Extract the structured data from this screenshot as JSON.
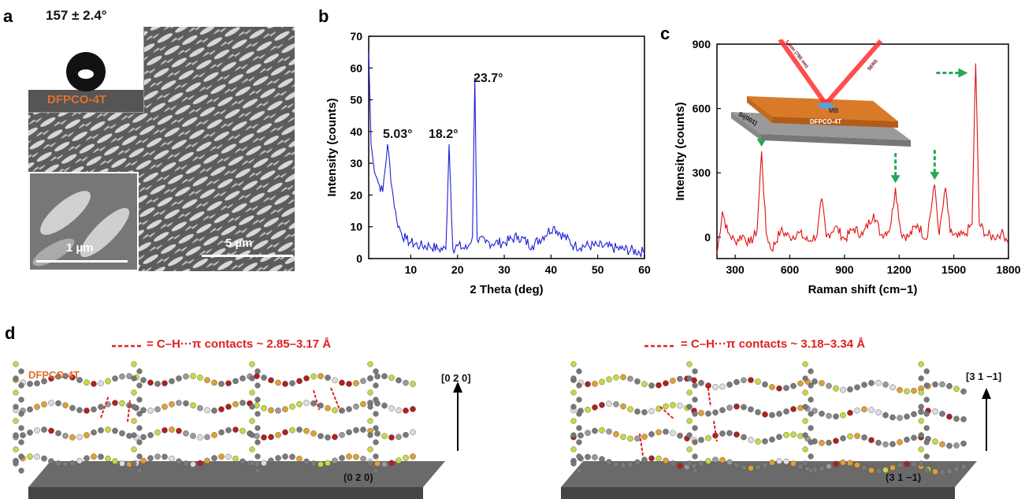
{
  "panels": {
    "a": {
      "letter": "a",
      "contact_angle": "157 ± 2.4°",
      "material": "DFPCO-4T",
      "inset_scale": "1 µm",
      "main_scale": "5 µm"
    },
    "b": {
      "letter": "b",
      "peak_labels": [
        "5.03°",
        "18.2°",
        "23.7°"
      ]
    },
    "c": {
      "letter": "c",
      "inset_labels": {
        "laser": "Laser (785 nm)",
        "mb": "MB",
        "film": "DFPCO-4T",
        "substrate": "Si(001)",
        "scatter": "SERS"
      }
    },
    "d": {
      "letter": "d",
      "left": {
        "legend": "= C–H···π contacts ~ 2.85–3.17 Å",
        "material": "DFPCO-4T",
        "direction": "[0 2 0]",
        "plane": "(0 2 0)"
      },
      "right": {
        "legend": "= C–H···π contacts ~ 3.18–3.34 Å",
        "direction": "[3 1 −1]",
        "plane": "(3 1 −1)"
      }
    }
  },
  "colors": {
    "xrd": "#1f1fd6",
    "raman": "#e01010",
    "arrow": "#22aa55",
    "orange": "#e07030",
    "contact": "#e02020"
  },
  "chart_data": [
    {
      "type": "line",
      "id": "xrd",
      "xlabel": "2 Theta (deg)",
      "ylabel": "Intensity (counts)",
      "xlim": [
        1,
        60
      ],
      "ylim": [
        0,
        70
      ],
      "xticks": [
        10,
        20,
        30,
        40,
        50,
        60
      ],
      "yticks": [
        0,
        10,
        20,
        30,
        40,
        50,
        60,
        70
      ],
      "grid": false,
      "x": [
        1,
        1.5,
        2,
        3,
        4,
        5.03,
        6,
        7,
        8,
        9,
        10,
        12,
        14,
        16,
        17.5,
        18.2,
        19,
        20,
        22,
        23.2,
        23.7,
        24.2,
        26,
        30,
        33,
        36,
        40.5,
        45,
        50,
        55,
        60
      ],
      "y": [
        65,
        36,
        30,
        24,
        21,
        36,
        22,
        12,
        8,
        6,
        5,
        4,
        4,
        3,
        3,
        36,
        3,
        4,
        3,
        7,
        57,
        6,
        5,
        5,
        7,
        4,
        10,
        4,
        4,
        3,
        2
      ]
    },
    {
      "type": "line",
      "id": "raman",
      "xlabel": "Raman shift (cm−1)",
      "ylabel": "Intensity (counts)",
      "xlim": [
        200,
        1800
      ],
      "ylim": [
        -100,
        900
      ],
      "xticks": [
        300,
        600,
        900,
        1200,
        1500,
        1800
      ],
      "yticks": [
        0,
        300,
        600,
        900
      ],
      "grid": false,
      "x": [
        200,
        230,
        260,
        300,
        340,
        380,
        420,
        445,
        470,
        500,
        550,
        600,
        650,
        700,
        750,
        775,
        800,
        850,
        900,
        950,
        1000,
        1060,
        1100,
        1150,
        1180,
        1210,
        1250,
        1300,
        1350,
        1395,
        1420,
        1455,
        1480,
        1520,
        1560,
        1600,
        1620,
        1640,
        1680,
        1720,
        1760,
        1800
      ],
      "y": [
        -80,
        120,
        20,
        -20,
        10,
        -30,
        30,
        400,
        20,
        -60,
        30,
        0,
        20,
        -20,
        10,
        180,
        0,
        50,
        -10,
        40,
        10,
        110,
        10,
        40,
        230,
        20,
        0,
        60,
        -10,
        245,
        10,
        230,
        20,
        0,
        10,
        60,
        810,
        60,
        10,
        0,
        20,
        -10
      ]
    }
  ]
}
